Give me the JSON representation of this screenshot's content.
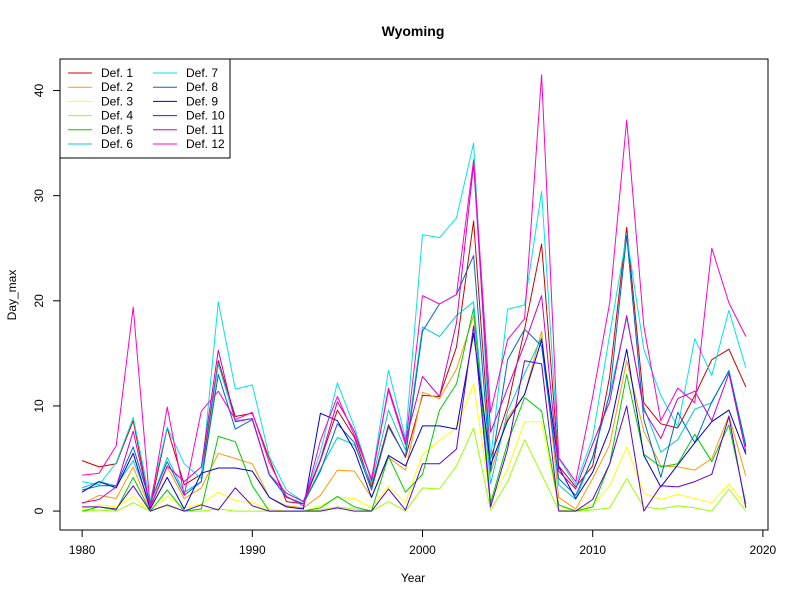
{
  "chart_data": {
    "type": "line",
    "title": "Wyoming",
    "xlabel": "Year",
    "ylabel": "Day_max",
    "xlim": [
      1978.7,
      2020.3
    ],
    "ylim": [
      -1.8,
      43
    ],
    "x_ticks": [
      1980,
      1990,
      2000,
      2010,
      2020
    ],
    "y_ticks": [
      0,
      10,
      20,
      30,
      40
    ],
    "legend_position": "top-left",
    "x": [
      1980,
      1981,
      1982,
      1983,
      1984,
      1985,
      1986,
      1987,
      1988,
      1989,
      1990,
      1991,
      1992,
      1993,
      1994,
      1995,
      1996,
      1997,
      1998,
      1999,
      2000,
      2001,
      2002,
      2003,
      2004,
      2005,
      2006,
      2007,
      2008,
      2009,
      2010,
      2011,
      2012,
      2013,
      2014,
      2015,
      2016,
      2017,
      2018,
      2019
    ],
    "series": [
      {
        "name": "Def. 1",
        "color": "#cc0000",
        "values": [
          4.8,
          4.2,
          4.5,
          8.6,
          0.3,
          7.9,
          2.5,
          3.5,
          14.3,
          9.0,
          9.3,
          5.0,
          0.9,
          0.7,
          4.8,
          9.6,
          7.0,
          2.3,
          8.2,
          5.1,
          11.0,
          10.9,
          15.6,
          27.6,
          5.0,
          10.0,
          17.3,
          25.4,
          4.3,
          2.3,
          4.3,
          12.8,
          27.0,
          10.3,
          8.3,
          7.9,
          11.0,
          14.4,
          15.4,
          11.8
        ]
      },
      {
        "name": "Def. 2",
        "color": "#ff9900",
        "values": [
          0.7,
          1.5,
          1.2,
          4.2,
          0.2,
          4.2,
          1.2,
          2.2,
          5.5,
          5.0,
          4.5,
          1.3,
          0.5,
          0.3,
          1.5,
          3.9,
          3.8,
          1.3,
          5.1,
          3.9,
          11.3,
          10.7,
          13.5,
          18.6,
          3.6,
          8.9,
          11.1,
          17.1,
          1.3,
          0.2,
          3.1,
          6.3,
          14.3,
          7.6,
          4.3,
          4.2,
          3.9,
          5.0,
          9.1,
          3.3
        ]
      },
      {
        "name": "Def. 3",
        "color": "#ffff00",
        "values": [
          0.2,
          0.6,
          0.4,
          1.4,
          0.0,
          1.4,
          0.3,
          0.7,
          1.8,
          1.0,
          0.8,
          0.2,
          0.0,
          0.0,
          0.5,
          1.3,
          1.2,
          0.3,
          2.4,
          0.8,
          5.4,
          6.7,
          7.9,
          12.1,
          1.0,
          4.0,
          8.5,
          8.5,
          0.4,
          0.1,
          0.6,
          2.4,
          6.1,
          1.7,
          1.1,
          1.6,
          1.2,
          0.8,
          2.6,
          0.5
        ]
      },
      {
        "name": "Def. 4",
        "color": "#99ff00",
        "values": [
          0.0,
          0.1,
          0.0,
          0.8,
          0.0,
          0.5,
          0.0,
          0.0,
          0.2,
          0.0,
          0.0,
          0.0,
          0.0,
          0.0,
          0.1,
          0.4,
          0.2,
          0.0,
          0.9,
          0.0,
          2.2,
          2.1,
          4.3,
          7.9,
          0.1,
          2.8,
          6.8,
          3.5,
          0.1,
          0.0,
          0.1,
          0.3,
          3.1,
          0.4,
          0.2,
          0.5,
          0.3,
          0.0,
          2.1,
          0.0
        ]
      },
      {
        "name": "Def. 5",
        "color": "#00cc00",
        "values": [
          0.0,
          0.4,
          0.1,
          3.2,
          0.0,
          2.0,
          0.0,
          0.2,
          7.1,
          6.6,
          2.4,
          0.0,
          0.0,
          0.0,
          0.3,
          1.4,
          0.4,
          0.0,
          5.2,
          1.8,
          3.5,
          9.6,
          12.1,
          19.3,
          0.8,
          6.5,
          10.8,
          9.5,
          0.6,
          0.0,
          0.4,
          4.5,
          13.0,
          5.4,
          4.2,
          4.5,
          7.3,
          4.7,
          8.2,
          0.7
        ]
      },
      {
        "name": "Def. 6",
        "color": "#00cccc",
        "values": [
          2.2,
          2.8,
          2.4,
          4.8,
          0.7,
          5.1,
          1.8,
          2.8,
          14.0,
          8.6,
          8.8,
          3.4,
          1.4,
          0.7,
          4.0,
          7.0,
          6.3,
          2.6,
          9.6,
          5.8,
          17.5,
          16.6,
          18.6,
          19.9,
          2.6,
          9.5,
          13.1,
          16.5,
          2.5,
          1.1,
          5.2,
          11.1,
          18.4,
          9.9,
          5.6,
          6.8,
          9.7,
          10.3,
          13.4,
          6.3
        ]
      },
      {
        "name": "Def. 7",
        "color": "#00e5e5",
        "values": [
          2.8,
          2.5,
          4.6,
          8.9,
          1.0,
          8.0,
          4.5,
          3.1,
          19.9,
          11.6,
          12.0,
          5.2,
          2.0,
          0.9,
          5.6,
          12.2,
          8.0,
          2.9,
          13.4,
          6.9,
          26.3,
          26.0,
          27.9,
          35.0,
          5.0,
          19.2,
          19.6,
          30.4,
          5.0,
          2.5,
          7.0,
          16.8,
          26.3,
          15.4,
          11.0,
          8.0,
          16.4,
          12.9,
          19.1,
          13.6
        ]
      },
      {
        "name": "Def. 8",
        "color": "#0066cc",
        "values": [
          2.0,
          2.4,
          2.4,
          6.1,
          0.8,
          4.7,
          1.5,
          2.8,
          13.0,
          7.8,
          8.7,
          3.5,
          1.3,
          0.7,
          3.8,
          8.3,
          6.5,
          2.0,
          8.0,
          5.2,
          17.1,
          19.7,
          20.6,
          24.3,
          3.8,
          14.4,
          17.3,
          15.7,
          3.1,
          1.5,
          5.1,
          11.2,
          26.2,
          8.7,
          3.2,
          9.4,
          6.5,
          10.4,
          13.3,
          6.1
        ]
      },
      {
        "name": "Def. 9",
        "color": "#0000cc",
        "values": [
          1.8,
          2.8,
          2.2,
          5.5,
          0.2,
          3.2,
          0.2,
          3.6,
          4.1,
          4.1,
          3.8,
          1.3,
          0.4,
          0.2,
          9.3,
          8.6,
          5.8,
          1.3,
          5.3,
          4.3,
          8.1,
          8.1,
          7.8,
          16.9,
          4.4,
          8.6,
          11.1,
          16.3,
          4.2,
          1.2,
          3.7,
          7.8,
          15.4,
          5.3,
          2.3,
          4.4,
          6.5,
          8.5,
          9.6,
          5.4
        ]
      },
      {
        "name": "Def. 10",
        "color": "#6600cc",
        "values": [
          0.4,
          0.4,
          0.2,
          2.4,
          0.0,
          0.6,
          0.0,
          0.6,
          0.1,
          2.2,
          0.5,
          0.0,
          0.0,
          0.0,
          0.0,
          0.3,
          0.0,
          0.0,
          2.1,
          0.1,
          4.5,
          4.5,
          5.9,
          17.6,
          0.4,
          5.9,
          14.3,
          14.0,
          0.0,
          0.0,
          1.1,
          4.5,
          10.0,
          0.0,
          2.4,
          2.3,
          2.8,
          3.5,
          9.0,
          0.3
        ]
      },
      {
        "name": "Def. 11",
        "color": "#cc00cc",
        "values": [
          0.8,
          1.1,
          2.3,
          7.6,
          0.4,
          4.3,
          2.8,
          4.2,
          15.3,
          8.5,
          8.8,
          3.5,
          1.7,
          0.9,
          4.9,
          10.4,
          7.6,
          2.9,
          11.7,
          6.6,
          12.8,
          10.9,
          17.9,
          33.0,
          7.5,
          11.7,
          15.9,
          20.5,
          3.8,
          2.1,
          6.4,
          10.4,
          18.6,
          9.6,
          6.9,
          10.7,
          11.4,
          8.6,
          13.1,
          5.6
        ]
      },
      {
        "name": "Def. 12",
        "color": "#ff00cc",
        "values": [
          3.4,
          3.6,
          6.2,
          19.4,
          0.4,
          9.9,
          1.5,
          9.5,
          11.4,
          8.7,
          9.4,
          4.6,
          1.4,
          0.5,
          6.7,
          10.9,
          7.2,
          3.1,
          11.5,
          6.3,
          20.5,
          19.7,
          20.6,
          33.4,
          9.4,
          16.3,
          18.3,
          41.5,
          5.1,
          2.8,
          10.9,
          19.8,
          37.2,
          17.6,
          8.6,
          11.7,
          10.3,
          25.0,
          19.8,
          16.6
        ]
      }
    ]
  }
}
